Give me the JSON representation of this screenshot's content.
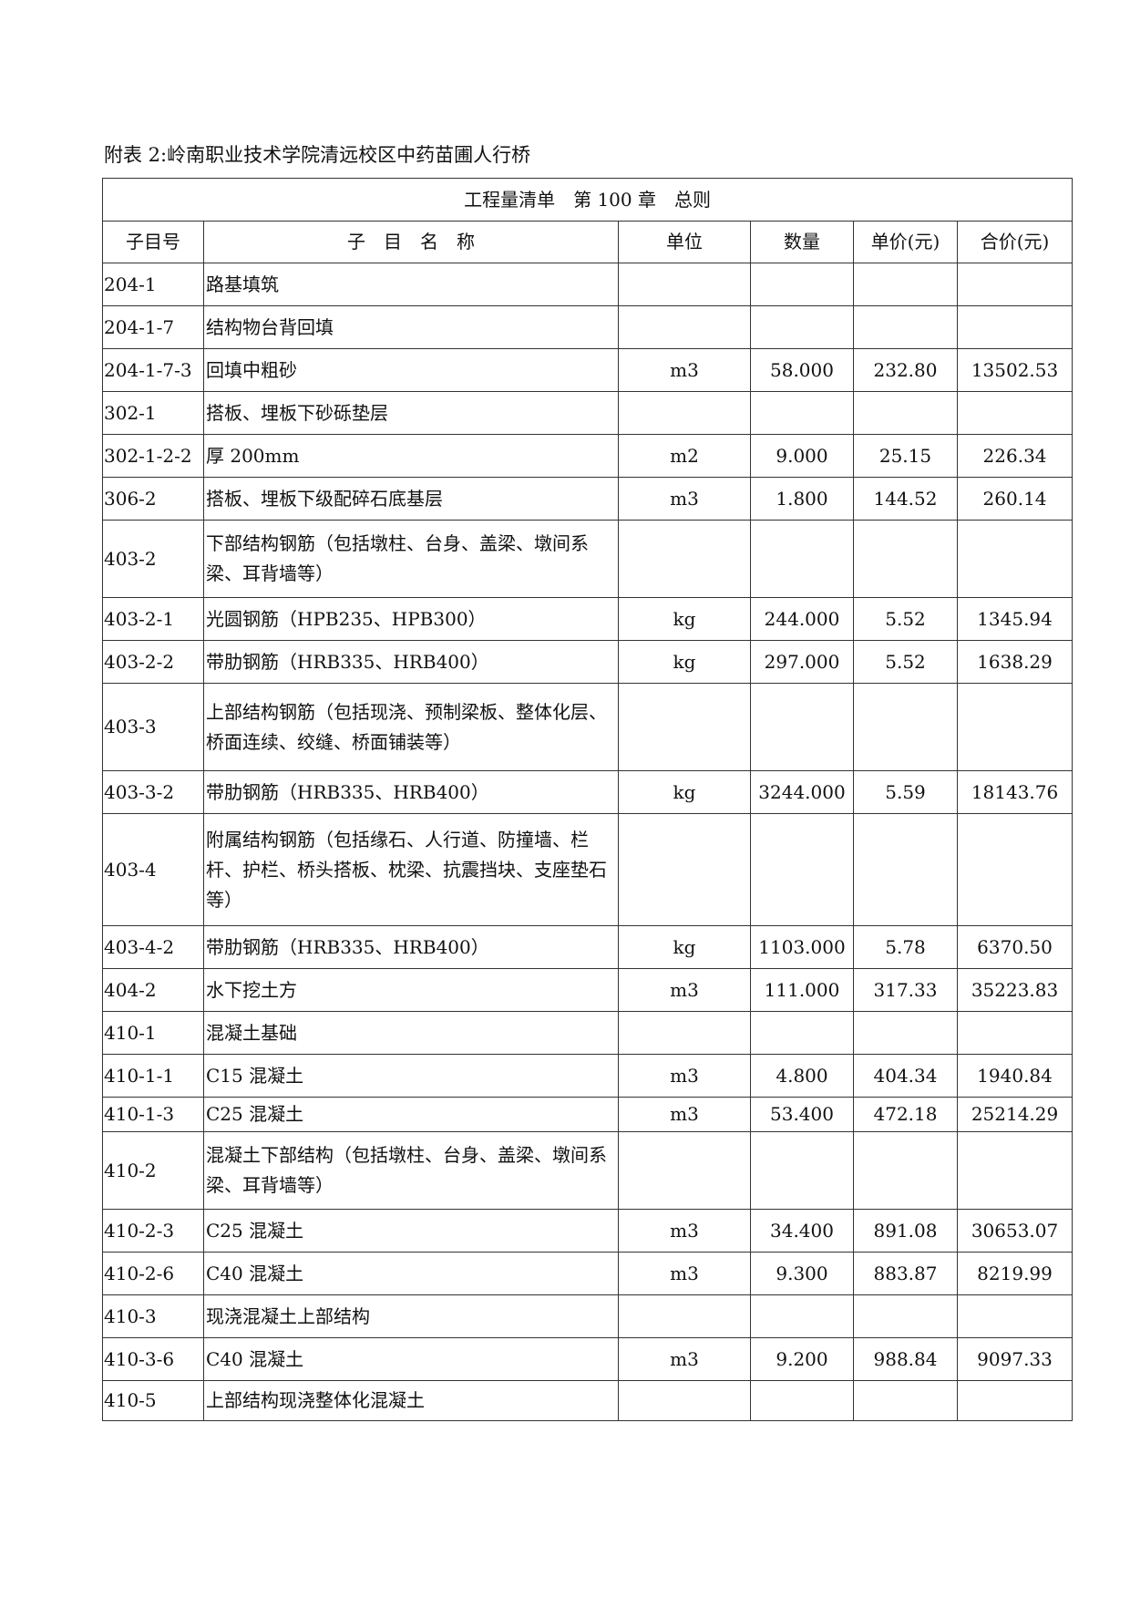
{
  "caption": "附表 2:岭南职业技术学院清远校区中药苗圃人行桥",
  "table_title": "工程量清单　第 100 章　总则",
  "headers": [
    "子目号",
    "子　目　名　称",
    "单位",
    "数量",
    "单价(元)",
    "合价(元)"
  ],
  "rows": [
    {
      "code": "204-1",
      "name": "路基填筑",
      "unit": "",
      "qty": "",
      "price": "",
      "total": ""
    },
    {
      "code": "204-1-7",
      "name": "结构物台背回填",
      "unit": "",
      "qty": "",
      "price": "",
      "total": ""
    },
    {
      "code": "204-1-7-3",
      "name": "回填中粗砂",
      "unit": "m3",
      "qty": "58.000",
      "price": "232.80",
      "total": "13502.53"
    },
    {
      "code": "302-1",
      "name": "搭板、埋板下砂砾垫层",
      "unit": "",
      "qty": "",
      "price": "",
      "total": ""
    },
    {
      "code": "302-1-2-2",
      "name": "厚 200mm",
      "unit": "m2",
      "qty": "9.000",
      "price": "25.15",
      "total": "226.34"
    },
    {
      "code": "306-2",
      "name": "搭板、埋板下级配碎石底基层",
      "unit": "m3",
      "qty": "1.800",
      "price": "144.52",
      "total": "260.14"
    },
    {
      "code": "403-2",
      "name": "下部结构钢筋（包括墩柱、台身、盖梁、墩间系梁、耳背墙等）",
      "unit": "",
      "qty": "",
      "price": "",
      "total": ""
    },
    {
      "code": "403-2-1",
      "name": "光圆钢筋（HPB235、HPB300）",
      "unit": "kg",
      "qty": "244.000",
      "price": "5.52",
      "total": "1345.94"
    },
    {
      "code": "403-2-2",
      "name": "带肋钢筋（HRB335、HRB400）",
      "unit": "kg",
      "qty": "297.000",
      "price": "5.52",
      "total": "1638.29"
    },
    {
      "code": "403-3",
      "name": "上部结构钢筋（包括现浇、预制梁板、整体化层、桥面连续、绞缝、桥面铺装等）",
      "unit": "",
      "qty": "",
      "price": "",
      "total": ""
    },
    {
      "code": "403-3-2",
      "name": "带肋钢筋（HRB335、HRB400）",
      "unit": "kg",
      "qty": "3244.000",
      "price": "5.59",
      "total": "18143.76"
    },
    {
      "code": "403-4",
      "name": "附属结构钢筋（包括缘石、人行道、防撞墙、栏杆、护栏、桥头搭板、枕梁、抗震挡块、支座垫石等）",
      "unit": "",
      "qty": "",
      "price": "",
      "total": ""
    },
    {
      "code": "403-4-2",
      "name": "带肋钢筋（HRB335、HRB400）",
      "unit": "kg",
      "qty": "1103.000",
      "price": "5.78",
      "total": "6370.50"
    },
    {
      "code": "404-2",
      "name": "水下挖土方",
      "unit": "m3",
      "qty": "111.000",
      "price": "317.33",
      "total": "35223.83"
    },
    {
      "code": "410-1",
      "name": "混凝土基础",
      "unit": "",
      "qty": "",
      "price": "",
      "total": ""
    },
    {
      "code": "410-1-1",
      "name": "C15 混凝土",
      "unit": "m3",
      "qty": "4.800",
      "price": "404.34",
      "total": "1940.84"
    },
    {
      "code": "410-1-3",
      "name": "C25 混凝土",
      "unit": "m3",
      "qty": "53.400",
      "price": "472.18",
      "total": "25214.29"
    },
    {
      "code": "410-2",
      "name": "混凝土下部结构（包括墩柱、台身、盖梁、墩间系梁、耳背墙等）",
      "unit": "",
      "qty": "",
      "price": "",
      "total": ""
    },
    {
      "code": "410-2-3",
      "name": "C25 混凝土",
      "unit": "m3",
      "qty": "34.400",
      "price": "891.08",
      "total": "30653.07"
    },
    {
      "code": "410-2-6",
      "name": "C40 混凝土",
      "unit": "m3",
      "qty": "9.300",
      "price": "883.87",
      "total": "8219.99"
    },
    {
      "code": "410-3",
      "name": "现浇混凝土上部结构",
      "unit": "",
      "qty": "",
      "price": "",
      "total": ""
    },
    {
      "code": "410-3-6",
      "name": "C40 混凝土",
      "unit": "m3",
      "qty": "9.200",
      "price": "988.84",
      "total": "9097.33"
    },
    {
      "code": "410-5",
      "name": "上部结构现浇整体化混凝土",
      "unit": "",
      "qty": "",
      "price": "",
      "total": ""
    }
  ]
}
